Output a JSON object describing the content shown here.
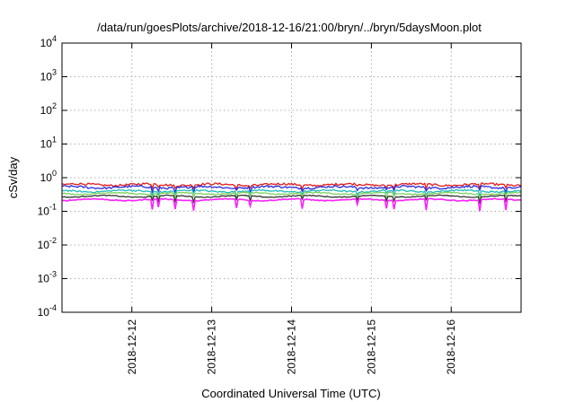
{
  "chart_data": {
    "type": "line",
    "title": "/data/run/goesPlots/archive/2018-12-16/21:00/bryn/../bryn/5daysMoon.plot",
    "xlabel": "Coordinated Universal Time (UTC)",
    "ylabel": "cSv/day",
    "yscale": "log",
    "ylim": [
      0.0001,
      10000
    ],
    "y_ticks": [
      {
        "value": 0.0001,
        "base": "10",
        "exp": "-4"
      },
      {
        "value": 0.001,
        "base": "10",
        "exp": "-3"
      },
      {
        "value": 0.01,
        "base": "10",
        "exp": "-2"
      },
      {
        "value": 0.1,
        "base": "10",
        "exp": "-1"
      },
      {
        "value": 1,
        "base": "10",
        "exp": "0"
      },
      {
        "value": 10,
        "base": "10",
        "exp": "1"
      },
      {
        "value": 100,
        "base": "10",
        "exp": "2"
      },
      {
        "value": 1000,
        "base": "10",
        "exp": "3"
      },
      {
        "value": 10000,
        "base": "10",
        "exp": "4"
      }
    ],
    "xlim": [
      "2018-12-11T03:00",
      "2018-12-16T21:00"
    ],
    "x_ticks": [
      "2018-12-12",
      "2018-12-13",
      "2018-12-14",
      "2018-12-15",
      "2018-12-16"
    ],
    "grid": true,
    "legend": "none",
    "series": [
      {
        "color": "#e41a1c",
        "level": 0.62,
        "noise": 0.07,
        "dip_depth": 0.25
      },
      {
        "color": "#2a2ae0",
        "level": 0.52,
        "noise": 0.07,
        "dip_depth": 0.3
      },
      {
        "color": "#1fb8b8",
        "level": 0.4,
        "noise": 0.05,
        "dip_depth": 0.3
      },
      {
        "color": "#7ad35a",
        "level": 0.34,
        "noise": 0.04,
        "dip_depth": 0.3
      },
      {
        "color": "#333333",
        "level": 0.28,
        "noise": 0.03,
        "dip_depth": 0.35
      },
      {
        "color": "#ff1fff",
        "level": 0.22,
        "noise": 0.03,
        "dip_depth": 0.55
      }
    ]
  }
}
